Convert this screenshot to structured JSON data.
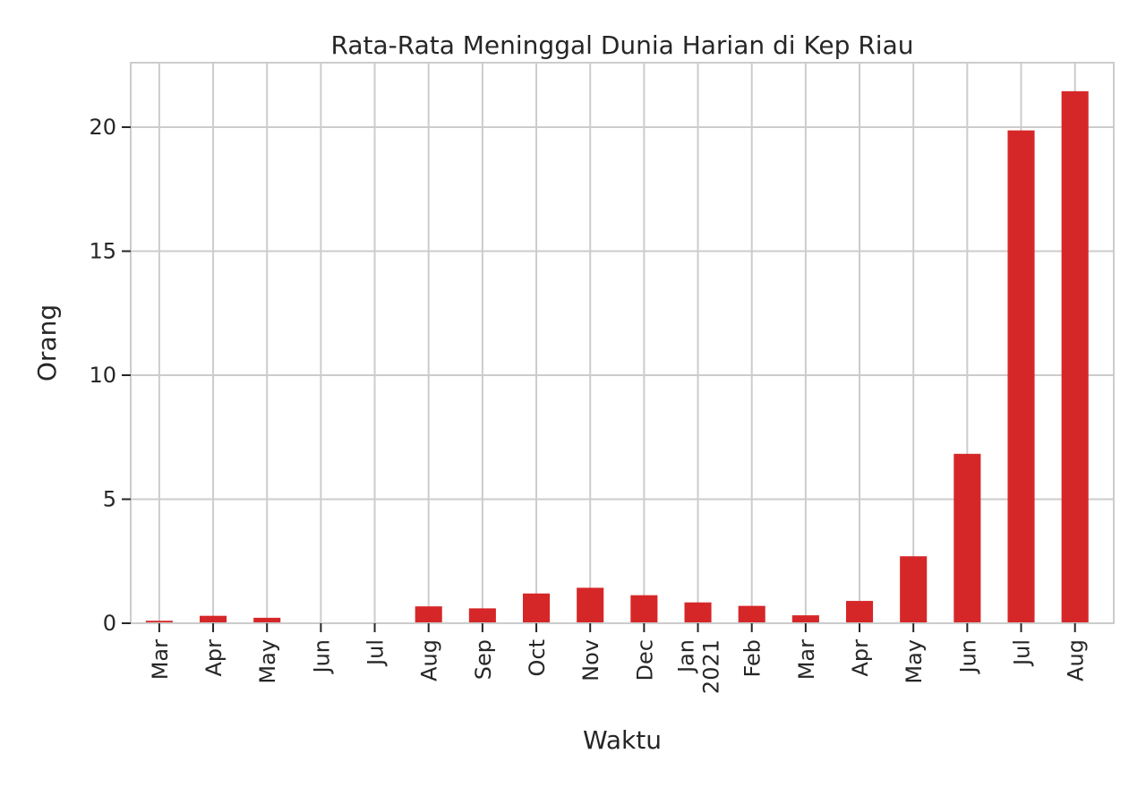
{
  "chart_data": {
    "type": "bar",
    "title": "Rata-Rata Meninggal Dunia Harian di Kep Riau",
    "xlabel": "Waktu",
    "ylabel": "Orang",
    "categories": [
      [
        "Mar"
      ],
      [
        "Apr"
      ],
      [
        "May"
      ],
      [
        "Jun"
      ],
      [
        "Jul"
      ],
      [
        "Aug"
      ],
      [
        "Sep"
      ],
      [
        "Oct"
      ],
      [
        "Nov"
      ],
      [
        "Dec"
      ],
      [
        "Jan",
        "2021"
      ],
      [
        "Feb"
      ],
      [
        "Mar"
      ],
      [
        "Apr"
      ],
      [
        "May"
      ],
      [
        "Jun"
      ],
      [
        "Jul"
      ],
      [
        "Aug"
      ]
    ],
    "values": [
      0.1,
      0.3,
      0.22,
      0.0,
      0.0,
      0.68,
      0.6,
      1.2,
      1.43,
      1.13,
      0.84,
      0.7,
      0.32,
      0.9,
      2.7,
      6.83,
      19.87,
      21.45
    ],
    "ylim": [
      0,
      22.6
    ],
    "yticks": [
      0,
      5,
      10,
      15,
      20
    ],
    "grid": true,
    "colors": {
      "bar": "#d62728",
      "grid": "#cccccc",
      "spine": "#cccccc",
      "tick": "#262626"
    }
  }
}
